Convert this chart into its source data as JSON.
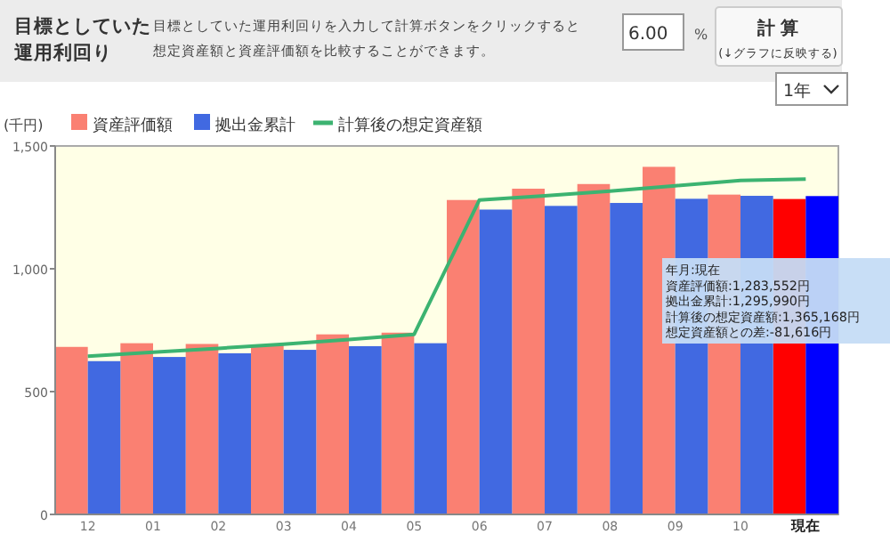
{
  "chart_data": {
    "type": "bar",
    "title": "目標としていた",
    "subtitle": "運用利回り",
    "ylabel": "(千円)",
    "annotations": [
      "目標としていた運用利回りを入力して計算ボタンをクリックすると",
      "想定資産額と資産評価額を比較することができます。",
      "6.00",
      "%",
      "計 算",
      "(↓グラフに反映する)",
      "1年",
      "年月:現在",
      "資産評価額:1,283,552円",
      "拠出金累計:1,295,990円",
      "計算後の想定資産額:1,365,168円",
      "想定資産額との差:-81,616円"
    ],
    "categories": [
      "12",
      "01",
      "02",
      "03",
      "04",
      "05",
      "06",
      "07",
      "08",
      "09",
      "10",
      "現在"
    ],
    "series": [
      {
        "name": "資産評価額",
        "color": "#fa8072",
        "colors": [
          "#fa8072",
          "#fa8072",
          "#fa8072",
          "#fa8072",
          "#fa8072",
          "#fa8072",
          "#fa8072",
          "#fa8072",
          "#fa8072",
          "#fa8072",
          "#fa8072",
          "#ff0000"
        ],
        "values": [
          682,
          697,
          694,
          690,
          733,
          740,
          1280,
          1326,
          1345,
          1415,
          1302,
          1284
        ]
      },
      {
        "name": "拠出金累計",
        "color": "#4169e1",
        "colors": [
          "#4169e1",
          "#4169e1",
          "#4169e1",
          "#4169e1",
          "#4169e1",
          "#4169e1",
          "#4169e1",
          "#4169e1",
          "#4169e1",
          "#4169e1",
          "#4169e1",
          "#0000ff"
        ],
        "values": [
          624,
          641,
          656,
          670,
          685,
          697,
          1241,
          1256,
          1268,
          1285,
          1297,
          1296
        ]
      },
      {
        "name": "計算後の想定資産額",
        "type": "line",
        "color": "#3cb371",
        "values": [
          644,
          660,
          676,
          693,
          712,
          733,
          1280,
          1297,
          1316,
          1338,
          1360,
          1365
        ]
      }
    ],
    "ylim": [
      0,
      1500
    ],
    "yticks": [
      0,
      500,
      {
        "value": 1000,
        "label": "1,000"
      },
      {
        "value": 1500,
        "label": "1,500"
      }
    ],
    "grid": false,
    "legend": "top left",
    "marker": "none",
    "line_style": "solid"
  }
}
